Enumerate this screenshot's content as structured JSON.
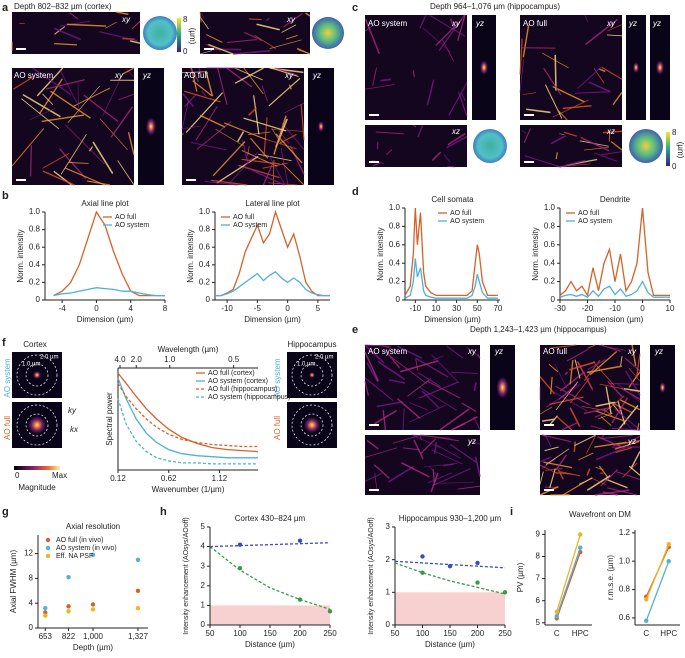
{
  "panel_labels": [
    "a",
    "b",
    "c",
    "d",
    "e",
    "f",
    "g",
    "h",
    "i"
  ],
  "panel_a": {
    "title": "Depth 802–832 µm (cortex)",
    "xy": "xy",
    "yz": "yz",
    "ao_system": "AO system",
    "ao_full": "AO full",
    "colorbar": {
      "max": 8,
      "min": 0,
      "unit": "(µm)"
    }
  },
  "panel_c": {
    "title": "Depth 964–1,076 µm (hippocampus)",
    "xy": "xy",
    "yz": "yz",
    "xz": "xz",
    "ao_system": "AO system",
    "ao_full": "AO full",
    "colorbar": {
      "max": 8,
      "min": 0,
      "unit": "(µm)"
    }
  },
  "panel_e": {
    "title": "Depth 1,243–1,423 µm (hippocampus)",
    "xy": "xy",
    "yz": "yz",
    "ao_system": "AO system",
    "ao_full": "AO full"
  },
  "panel_f": {
    "cortex": "Cortex",
    "hippocampus": "Hippocampus",
    "ao_system": "AO system",
    "ao_full": "AO full",
    "scale_outer": "2.0 µm",
    "scale_inner": "1.0 µm",
    "ky": "ky",
    "kx": "kx",
    "magnitude": "Magnitude",
    "min": 0,
    "max": "Max"
  },
  "panel_i": {
    "title": "Wavefront on DM"
  },
  "chart_data": [
    {
      "type": "line",
      "title": "Axial line plot",
      "xlabel": "Dimension (µm)",
      "ylabel": "Norm. intensity",
      "xlim": [
        -6,
        8
      ],
      "xticks": [
        -4,
        0,
        4,
        8
      ],
      "ylim": [
        0,
        1
      ],
      "yticks": [
        0,
        0.2,
        0.4,
        0.6,
        0.8,
        {
          "value": 1,
          "label": "1.0"
        }
      ],
      "legend": "upper right",
      "x": [
        -5,
        -4,
        -3,
        -2,
        -1,
        0,
        1,
        2,
        3,
        4,
        5,
        6,
        7,
        8
      ],
      "series": [
        {
          "name": "AO full",
          "color": "#d4622a",
          "values": [
            0.05,
            0.1,
            0.2,
            0.4,
            0.7,
            1.0,
            0.85,
            0.55,
            0.3,
            0.1,
            0.05,
            0.05,
            0.05,
            0.05
          ]
        },
        {
          "name": "AO system",
          "color": "#4fb0d8",
          "values": [
            0.05,
            0.07,
            0.08,
            0.1,
            0.12,
            0.14,
            0.13,
            0.12,
            0.1,
            0.1,
            0.08,
            0.06,
            0.05,
            0.05
          ]
        }
      ]
    },
    {
      "type": "line",
      "title": "Lateral line plot",
      "xlabel": "Dimension (µm)",
      "ylabel": "Norm. intensity",
      "xlim": [
        -12,
        7
      ],
      "xticks": [
        -10,
        -5,
        0,
        5
      ],
      "ylim": [
        0,
        1
      ],
      "yticks": [
        0,
        0.2,
        0.4,
        0.6,
        0.8,
        {
          "value": 1,
          "label": "1.0"
        }
      ],
      "legend": "upper left",
      "x": [
        -12,
        -11,
        -10,
        -9,
        -8,
        -7,
        -6,
        -5,
        -4,
        -3,
        -2,
        -1,
        0,
        1,
        2,
        3,
        4,
        5,
        6,
        7
      ],
      "series": [
        {
          "name": "AO full",
          "color": "#d4622a",
          "values": [
            0.05,
            0.05,
            0.08,
            0.12,
            0.3,
            0.55,
            0.7,
            0.85,
            0.65,
            0.75,
            1.0,
            0.8,
            0.6,
            0.75,
            0.5,
            0.2,
            0.1,
            0.05,
            0.05,
            0.05
          ]
        },
        {
          "name": "AO system",
          "color": "#4fb0d8",
          "values": [
            0.05,
            0.05,
            0.07,
            0.1,
            0.15,
            0.2,
            0.25,
            0.3,
            0.22,
            0.28,
            0.32,
            0.25,
            0.2,
            0.25,
            0.2,
            0.12,
            0.08,
            0.06,
            0.05,
            0.05
          ]
        }
      ]
    },
    {
      "type": "line",
      "title": "Cell somata",
      "xlabel": "Dimension (µm)",
      "ylabel": "Norm. intensity",
      "xlim": [
        -20,
        72
      ],
      "xticks": [
        -10,
        10,
        30,
        50,
        70
      ],
      "ylim": [
        0,
        1
      ],
      "yticks": [
        0,
        0.2,
        0.4,
        0.6,
        0.8,
        {
          "value": 1,
          "label": "1.0"
        }
      ],
      "legend": "upper right",
      "x": [
        -20,
        -15,
        -12,
        -10,
        -8,
        -5,
        -2,
        0,
        5,
        10,
        20,
        30,
        40,
        45,
        48,
        50,
        52,
        55,
        60,
        65,
        70
      ],
      "series": [
        {
          "name": "AO full",
          "color": "#d4622a",
          "values": [
            0.05,
            0.15,
            0.5,
            1.0,
            0.6,
            0.95,
            0.3,
            0.15,
            0.08,
            0.05,
            0.05,
            0.05,
            0.05,
            0.1,
            0.4,
            0.6,
            0.5,
            0.2,
            0.05,
            0.05,
            0.05
          ]
        },
        {
          "name": "AO system",
          "color": "#4fb0d8",
          "values": [
            0.02,
            0.05,
            0.2,
            0.45,
            0.25,
            0.35,
            0.1,
            0.05,
            0.03,
            0.02,
            0.02,
            0.02,
            0.02,
            0.05,
            0.15,
            0.28,
            0.2,
            0.08,
            0.02,
            0.02,
            0.02
          ]
        }
      ]
    },
    {
      "type": "line",
      "title": "Dendrite",
      "xlabel": "Dimension (µm)",
      "ylabel": "Norm. intensity",
      "xlim": [
        -30,
        10
      ],
      "xticks": [
        -30,
        -20,
        -10,
        0,
        10
      ],
      "ylim": [
        0,
        1
      ],
      "yticks": [
        0,
        0.2,
        0.4,
        0.6,
        0.8,
        {
          "value": 1,
          "label": "1.0"
        }
      ],
      "legend": "upper left",
      "x": [
        -30,
        -28,
        -26,
        -24,
        -22,
        -20,
        -18,
        -16,
        -14,
        -12,
        -10,
        -8,
        -6,
        -4,
        -2,
        0,
        2,
        4,
        6,
        8,
        10
      ],
      "series": [
        {
          "name": "AO full",
          "color": "#d4622a",
          "values": [
            0.05,
            0.1,
            0.2,
            0.1,
            0.15,
            0.05,
            0.35,
            0.1,
            0.4,
            0.55,
            0.2,
            0.5,
            0.1,
            0.2,
            0.4,
            1.0,
            0.3,
            0.05,
            0.05,
            0.05,
            0.05
          ]
        },
        {
          "name": "AO system",
          "color": "#4fb0d8",
          "values": [
            0.03,
            0.05,
            0.06,
            0.04,
            0.06,
            0.03,
            0.1,
            0.04,
            0.12,
            0.15,
            0.06,
            0.12,
            0.04,
            0.06,
            0.1,
            0.2,
            0.08,
            0.03,
            0.03,
            0.03,
            0.03
          ]
        }
      ]
    },
    {
      "type": "line",
      "xlabel": "Wavenumber (1/µm)",
      "ylabel": "Spectral power",
      "x2label": "Wavelength (µm)",
      "xlim": [
        0.12,
        1.5
      ],
      "xticks": [
        0.12,
        0.62,
        1.12
      ],
      "x2ticks": [
        {
          "value": 0.14,
          "label": "4.0"
        },
        {
          "value": 0.3,
          "label": "2.0"
        },
        {
          "value": 0.63,
          "label": "1.0"
        },
        {
          "value": 1.26,
          "label": "0.5"
        }
      ],
      "ylim": [
        0,
        1
      ],
      "legend": "upper right",
      "x": [
        0.12,
        0.2,
        0.3,
        0.4,
        0.5,
        0.62,
        0.75,
        0.9,
        1.05,
        1.2,
        1.35,
        1.5
      ],
      "series": [
        {
          "name": "AO full (cortex)",
          "color": "#d4622a",
          "values": [
            0.95,
            0.85,
            0.72,
            0.6,
            0.5,
            0.4,
            0.32,
            0.26,
            0.22,
            0.2,
            0.19,
            0.18
          ]
        },
        {
          "name": "AO system (cortex)",
          "color": "#4fb0d8",
          "values": [
            0.9,
            0.7,
            0.5,
            0.36,
            0.27,
            0.2,
            0.16,
            0.14,
            0.13,
            0.12,
            0.12,
            0.12
          ]
        },
        {
          "name": "AO full (hippocampus)",
          "color": "#d4622a",
          "dash": true,
          "values": [
            0.85,
            0.72,
            0.6,
            0.5,
            0.42,
            0.35,
            0.3,
            0.27,
            0.25,
            0.24,
            0.23,
            0.23
          ]
        },
        {
          "name": "AO system (hippocampus)",
          "color": "#4fb0d8",
          "dash": true,
          "values": [
            0.7,
            0.45,
            0.28,
            0.18,
            0.12,
            0.09,
            0.07,
            0.07,
            0.06,
            0.06,
            0.06,
            0.06
          ]
        }
      ]
    },
    {
      "type": "scatter",
      "title": "Axial resolution",
      "xlabel": "Depth (µm)",
      "ylabel": "Axial FWHM (µm)",
      "xlim": [
        600,
        1400
      ],
      "xticks": [
        653,
        822,
        {
          "value": 1000,
          "label": "1,000"
        },
        {
          "value": 1327,
          "label": "1,327"
        }
      ],
      "ylim": [
        0,
        15
      ],
      "yticks": [
        0,
        4,
        8,
        12
      ],
      "legend": "upper left",
      "x": [
        653,
        822,
        1000,
        1327
      ],
      "series": [
        {
          "name": "AO full (in vivo)",
          "color": "#d4622a",
          "values": [
            2.5,
            3.5,
            3.8,
            6
          ]
        },
        {
          "name": "AO system (in vivo)",
          "color": "#4fb0d8",
          "values": [
            3.2,
            8.2,
            11.8,
            11
          ]
        },
        {
          "name": "Eff. NA PSF",
          "color": "#f0b323",
          "values": [
            2.0,
            2.7,
            3.0,
            3.2
          ]
        }
      ]
    },
    {
      "type": "line",
      "title": "Cortex 430–824 µm",
      "xlabel": "Distance (µm)",
      "ylabel": "Intensity enhancement (AOsys/AOoff)",
      "xlim": [
        50,
        250
      ],
      "xticks": [
        50,
        100,
        150,
        200,
        250
      ],
      "ylim": [
        0,
        5
      ],
      "yticks": [
        0,
        1,
        2,
        3,
        4,
        5
      ],
      "band": [
        0,
        1
      ],
      "series": [
        {
          "color": "#3a9a4a",
          "marker": true,
          "line": false,
          "x": [
            100,
            200,
            250
          ],
          "values": [
            2.9,
            1.3,
            0.7
          ]
        },
        {
          "color": "#3b4cc0",
          "marker": true,
          "line": false,
          "x": [
            100,
            200
          ],
          "values": [
            4.1,
            4.3
          ]
        },
        {
          "color": "#3a9a4a",
          "dash": true,
          "x": [
            50,
            100,
            150,
            200,
            250
          ],
          "values": [
            4.0,
            2.8,
            1.9,
            1.3,
            0.8
          ]
        },
        {
          "color": "#3b4cc0",
          "dash": true,
          "x": [
            50,
            250
          ],
          "values": [
            4.0,
            4.2
          ]
        }
      ]
    },
    {
      "type": "line",
      "title": "Hippocampus 930–1,200 µm",
      "xlabel": "Distance (µm)",
      "ylabel": "Intensity enhancement (AOsys/AOoff)",
      "xlim": [
        50,
        250
      ],
      "xticks": [
        50,
        100,
        150,
        200,
        250
      ],
      "ylim": [
        0,
        3
      ],
      "yticks": [
        0,
        1,
        2,
        3
      ],
      "band": [
        0,
        1
      ],
      "series": [
        {
          "color": "#3a9a4a",
          "marker": true,
          "line": false,
          "x": [
            100,
            200,
            250
          ],
          "values": [
            1.6,
            1.3,
            1.0
          ]
        },
        {
          "color": "#3b4cc0",
          "marker": true,
          "line": false,
          "x": [
            100,
            150,
            200
          ],
          "values": [
            2.1,
            1.8,
            1.9
          ]
        },
        {
          "color": "#3a9a4a",
          "dash": true,
          "x": [
            50,
            100,
            150,
            200,
            250
          ],
          "values": [
            1.9,
            1.6,
            1.35,
            1.15,
            0.95
          ]
        },
        {
          "color": "#3b4cc0",
          "dash": true,
          "x": [
            50,
            250
          ],
          "values": [
            1.95,
            1.75
          ]
        }
      ]
    },
    {
      "type": "line",
      "ylabel": "PV (µm)",
      "categories": [
        "C",
        "HPC"
      ],
      "ylim": [
        4.9,
        9.2
      ],
      "yticks": [
        5,
        6,
        7,
        8,
        9
      ],
      "series": [
        {
          "color": "#d4622a",
          "marker": true,
          "values": [
            5.2,
            8.2
          ]
        },
        {
          "color": "#4fb0d8",
          "marker": true,
          "values": [
            5.3,
            8.4
          ]
        },
        {
          "color": "#f0b323",
          "marker": true,
          "values": [
            5.5,
            9.0
          ]
        }
      ]
    },
    {
      "type": "line",
      "ylabel": "r.m.s.e. (µm)",
      "categories": [
        "C",
        "HPC"
      ],
      "ylim": [
        0.55,
        1.22
      ],
      "yticks": [
        0.6,
        0.8,
        {
          "value": 1,
          "label": "1.0"
        },
        1.2
      ],
      "series": [
        {
          "color": "#d4622a",
          "marker": true,
          "values": [
            0.75,
            1.1
          ]
        },
        {
          "color": "#4fb0d8",
          "marker": true,
          "values": [
            0.58,
            1.0
          ]
        },
        {
          "color": "#f0b323",
          "marker": true,
          "values": [
            0.73,
            1.12
          ]
        }
      ]
    }
  ]
}
